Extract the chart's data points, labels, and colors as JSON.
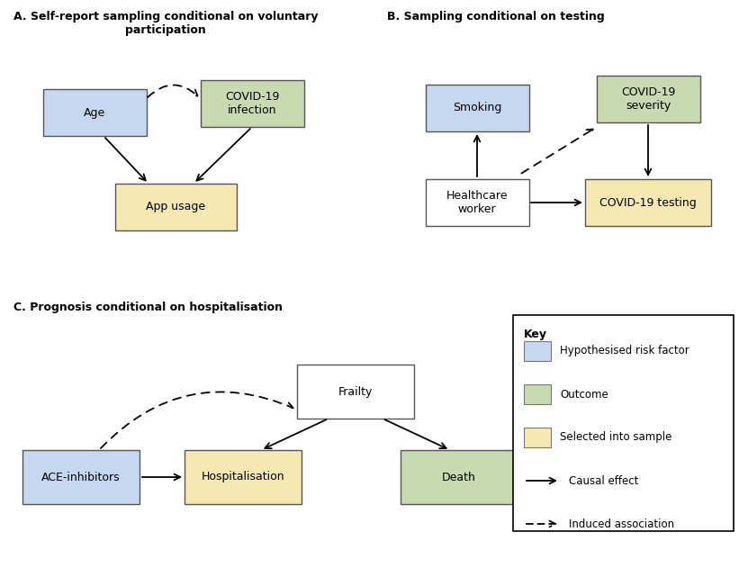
{
  "title_A": "A. Self-report sampling conditional on voluntary\nparticipation",
  "title_B": "B. Sampling conditional on testing",
  "title_C": "C. Prognosis conditional on hospitalisation",
  "colors": {
    "blue": "#C5D8F0",
    "green": "#C8DAB0",
    "yellow": "#F5E8B0",
    "white": "#FFFFFF",
    "text": "#000000",
    "bg": "#FFFFFF"
  },
  "key_title": "Key",
  "key_items": [
    {
      "label": "Hypothesised risk factor",
      "color": "#C5D8F0"
    },
    {
      "label": "Outcome",
      "color": "#C8DAB0"
    },
    {
      "label": "Selected into sample",
      "color": "#F5E8B0"
    },
    {
      "label": "Causal effect",
      "color": null
    },
    {
      "label": "Induced association",
      "color": null
    }
  ]
}
